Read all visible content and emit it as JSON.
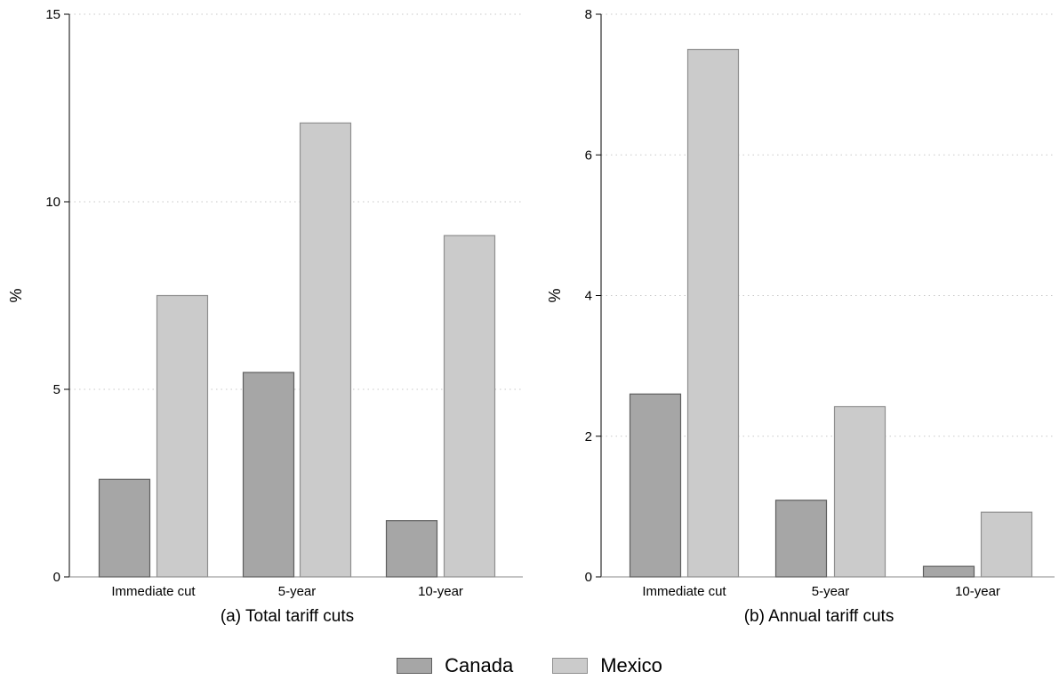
{
  "colors": {
    "canada_fill": "#a6a6a6",
    "canada_stroke": "#5f5f5f",
    "mexico_fill": "#cbcbcb",
    "mexico_stroke": "#8f8f8f",
    "grid": "#c8c8c8",
    "axis": "#000000"
  },
  "legend": {
    "items": [
      {
        "label": "Canada",
        "color": "#a6a6a6",
        "stroke": "#5f5f5f"
      },
      {
        "label": "Mexico",
        "color": "#cbcbcb",
        "stroke": "#8f8f8f"
      }
    ]
  },
  "chart_data": [
    {
      "type": "bar",
      "title": "(a) Total tariff cuts",
      "ylabel": "%",
      "xlabel": "",
      "categories": [
        "Immediate cut",
        "5-year",
        "10-year"
      ],
      "series": [
        {
          "name": "Canada",
          "values": [
            2.6,
            5.45,
            1.5
          ]
        },
        {
          "name": "Mexico",
          "values": [
            7.5,
            12.1,
            9.1
          ]
        }
      ],
      "ylim": [
        0,
        15
      ],
      "yticks": [
        0,
        5,
        10,
        15
      ],
      "grid": "horizontal-dotted",
      "legend": "bottom-center"
    },
    {
      "type": "bar",
      "title": "(b) Annual tariff cuts",
      "ylabel": "%",
      "xlabel": "",
      "categories": [
        "Immediate cut",
        "5-year",
        "10-year"
      ],
      "series": [
        {
          "name": "Canada",
          "values": [
            2.6,
            1.09,
            0.15
          ]
        },
        {
          "name": "Mexico",
          "values": [
            7.5,
            2.42,
            0.92
          ]
        }
      ],
      "ylim": [
        0,
        8
      ],
      "yticks": [
        0,
        2,
        4,
        6,
        8
      ],
      "grid": "horizontal-dotted",
      "legend": "bottom-center"
    }
  ]
}
